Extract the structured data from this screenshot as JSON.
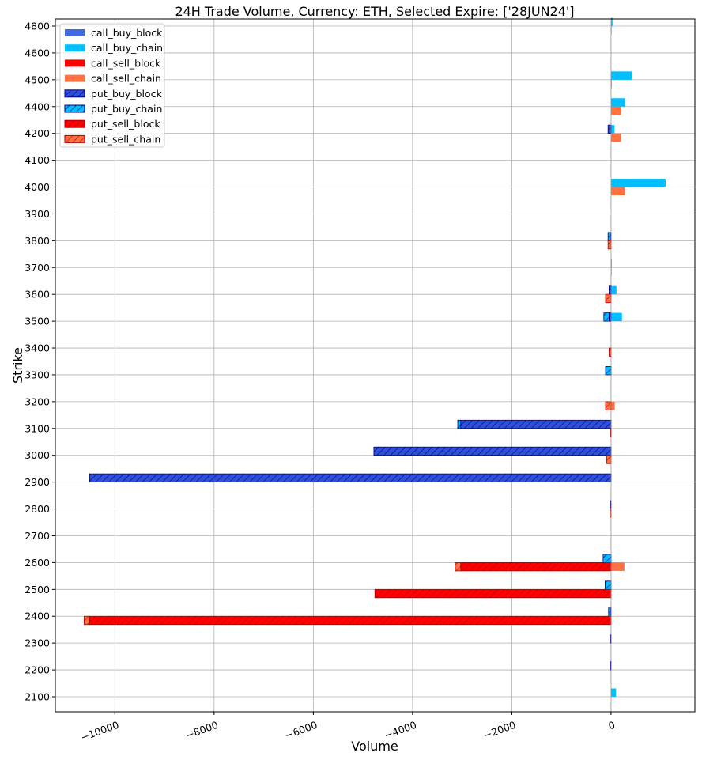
{
  "chart_data": {
    "type": "bar",
    "orientation": "horizontal",
    "title": "24H Trade Volume, Currency: ETH, Selected Expire: ['28JUN24']",
    "xlabel": "Volume",
    "ylabel": "Strike",
    "xlim": [
      -11200,
      1690
    ],
    "xticks": [
      -10000,
      -8000,
      -6000,
      -4000,
      -2000,
      0
    ],
    "xtick_labels": [
      "−10000",
      "−8000",
      "−6000",
      "−4000",
      "−2000",
      "0"
    ],
    "grid": true,
    "legend_position": "top-left",
    "categories": [
      "2100",
      "2200",
      "2300",
      "2400",
      "2500",
      "2600",
      "2700",
      "2800",
      "2900",
      "3000",
      "3100",
      "3200",
      "3300",
      "3400",
      "3500",
      "3600",
      "3700",
      "3800",
      "3900",
      "4000",
      "4100",
      "4200",
      "4400",
      "4500",
      "4600",
      "4800"
    ],
    "series": [
      {
        "name": "call_buy_block",
        "color": "#4169E1",
        "edge": "#4169E1",
        "hatch": false,
        "side": "buy",
        "values": [
          0,
          0,
          0,
          0,
          0,
          0,
          0,
          0,
          0,
          0,
          0,
          0,
          0,
          0,
          0,
          0,
          0,
          0,
          0,
          0,
          0,
          0,
          0,
          0,
          0,
          0
        ]
      },
      {
        "name": "call_buy_chain",
        "color": "#00BFFF",
        "edge": "#00BFFF",
        "hatch": false,
        "side": "buy",
        "values": [
          100,
          0,
          0,
          0,
          0,
          0,
          0,
          0,
          0,
          0,
          0,
          0,
          0,
          0,
          220,
          110,
          15,
          0,
          0,
          1100,
          0,
          70,
          280,
          420,
          0,
          30
        ]
      },
      {
        "name": "call_sell_block",
        "color": "#FF0000",
        "edge": "#FF0000",
        "hatch": false,
        "side": "sell",
        "values": [
          0,
          0,
          0,
          0,
          0,
          0,
          0,
          0,
          0,
          0,
          0,
          0,
          0,
          0,
          0,
          0,
          0,
          0,
          0,
          0,
          0,
          0,
          0,
          0,
          0,
          0
        ]
      },
      {
        "name": "call_sell_chain",
        "color": "#FF7043",
        "edge": "#FF7043",
        "hatch": false,
        "side": "sell",
        "values": [
          0,
          0,
          0,
          0,
          0,
          270,
          0,
          0,
          0,
          0,
          0,
          75,
          0,
          0,
          0,
          0,
          10,
          0,
          0,
          280,
          0,
          200,
          200,
          15,
          0,
          10
        ]
      },
      {
        "name": "put_buy_block",
        "color": "#3050D8",
        "edge": "#00008B",
        "hatch": true,
        "side": "buy",
        "values": [
          0,
          -15,
          -15,
          -20,
          0,
          0,
          0,
          -15,
          -10510,
          -4780,
          -3030,
          0,
          0,
          0,
          -40,
          -40,
          0,
          -20,
          0,
          0,
          0,
          -60,
          0,
          0,
          0,
          0
        ]
      },
      {
        "name": "put_buy_chain",
        "color": "#00BFFF",
        "edge": "#00008B",
        "hatch": true,
        "side": "buy",
        "values": [
          0,
          0,
          0,
          -30,
          -120,
          -160,
          0,
          0,
          0,
          0,
          -60,
          0,
          -110,
          0,
          -105,
          0,
          0,
          -40,
          0,
          0,
          0,
          0,
          0,
          0,
          0,
          0
        ]
      },
      {
        "name": "put_sell_block",
        "color": "#FF0000",
        "edge": "#B00000",
        "hatch": true,
        "side": "sell",
        "values": [
          0,
          0,
          0,
          -10510,
          -4760,
          -3030,
          0,
          0,
          0,
          0,
          -10,
          0,
          0,
          0,
          0,
          0,
          0,
          0,
          0,
          0,
          0,
          0,
          0,
          0,
          0,
          0
        ]
      },
      {
        "name": "put_sell_chain",
        "color": "#FF7043",
        "edge": "#B00000",
        "hatch": true,
        "side": "sell",
        "values": [
          0,
          0,
          0,
          -110,
          0,
          -110,
          0,
          -20,
          0,
          -90,
          0,
          -110,
          0,
          -40,
          0,
          -110,
          0,
          -60,
          0,
          0,
          0,
          0,
          0,
          0,
          0,
          0
        ]
      }
    ]
  }
}
